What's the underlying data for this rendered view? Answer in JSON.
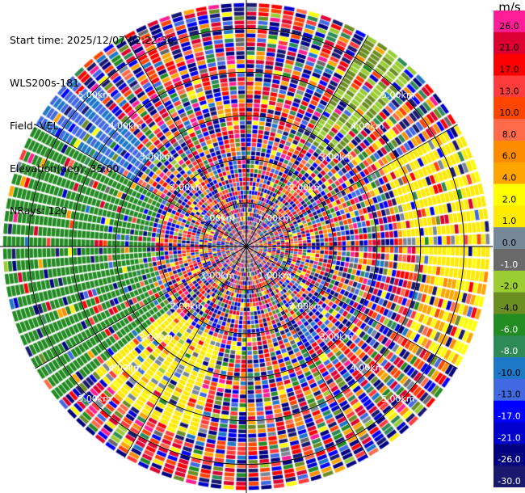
{
  "info": {
    "start_time": "Start time: 2025/12/07 02:22:36",
    "instrument": "WLS200s-181",
    "field": "Field: VEL",
    "elevation": "Elevation(deg): 35.00",
    "nrays": "NRays: 120"
  },
  "colorbar": {
    "unit": "m/s",
    "entries": [
      {
        "label": "26.0",
        "color": "#ff1e96"
      },
      {
        "label": "21.0",
        "color": "#dc0032"
      },
      {
        "label": "17.0",
        "color": "#ff0000"
      },
      {
        "label": "13.0",
        "color": "#ff3c3c"
      },
      {
        "label": "10.0",
        "color": "#ff4500"
      },
      {
        "label": "8.0",
        "color": "#ff6a4a"
      },
      {
        "label": "6.0",
        "color": "#ff8c00"
      },
      {
        "label": "4.0",
        "color": "#ffa500"
      },
      {
        "label": "2.0",
        "color": "#ffff00"
      },
      {
        "label": "1.0",
        "color": "#ffea00"
      },
      {
        "label": "0.0",
        "color": "#778899"
      },
      {
        "label": "-1.0",
        "color": "#696969"
      },
      {
        "label": "-2.0",
        "color": "#9acd32"
      },
      {
        "label": "-4.0",
        "color": "#6b8e23"
      },
      {
        "label": "-6.0",
        "color": "#228b22"
      },
      {
        "label": "-8.0",
        "color": "#2e8b57"
      },
      {
        "label": "-10.0",
        "color": "#1e78c8"
      },
      {
        "label": "-13.0",
        "color": "#4169e1"
      },
      {
        "label": "-17.0",
        "color": "#0000ff"
      },
      {
        "label": "-21.0",
        "color": "#0000cd"
      },
      {
        "label": "-26.0",
        "color": "#000080"
      },
      {
        "label": "-30.0",
        "color": "#191970"
      }
    ]
  },
  "chart_data": {
    "type": "heatmap",
    "title": "",
    "field": "VEL",
    "nrays": 120,
    "elevation_deg": 35.0,
    "projection": "polar-ppi",
    "unit": "m/s",
    "range_rings_km": [
      1.0,
      2.0,
      3.0,
      4.0,
      5.0
    ],
    "range_ring_labels": [
      "1.00km",
      "2.00km",
      "3.00km",
      "4.00km",
      "5.00km"
    ],
    "max_range_km": 5.6,
    "grid": true,
    "sectors": [
      {
        "azimuth_deg": [
          30,
          45
        ],
        "range_km": [
          2.8,
          5.6
        ],
        "value_ms": -2.0
      },
      {
        "azimuth_deg": [
          60,
          100
        ],
        "range_km": [
          3.6,
          5.6
        ],
        "value_ms": 1.5
      },
      {
        "azimuth_deg": [
          100,
          120
        ],
        "range_km": [
          4.2,
          5.6
        ],
        "value_ms": 4.0
      },
      {
        "azimuth_deg": [
          195,
          230
        ],
        "range_km": [
          2.2,
          4.5
        ],
        "value_ms": 1.5
      },
      {
        "azimuth_deg": [
          230,
          300
        ],
        "range_km": [
          2.2,
          5.6
        ],
        "value_ms": -5.0
      },
      {
        "azimuth_deg": [
          300,
          315
        ],
        "range_km": [
          3.0,
          5.6
        ],
        "value_ms": -10.0
      },
      {
        "azimuth_deg": [
          220,
          245
        ],
        "range_km": [
          2.2,
          3.5
        ],
        "value_ms": -0.5
      }
    ],
    "background": "mixed noise across all colorbar bins"
  }
}
